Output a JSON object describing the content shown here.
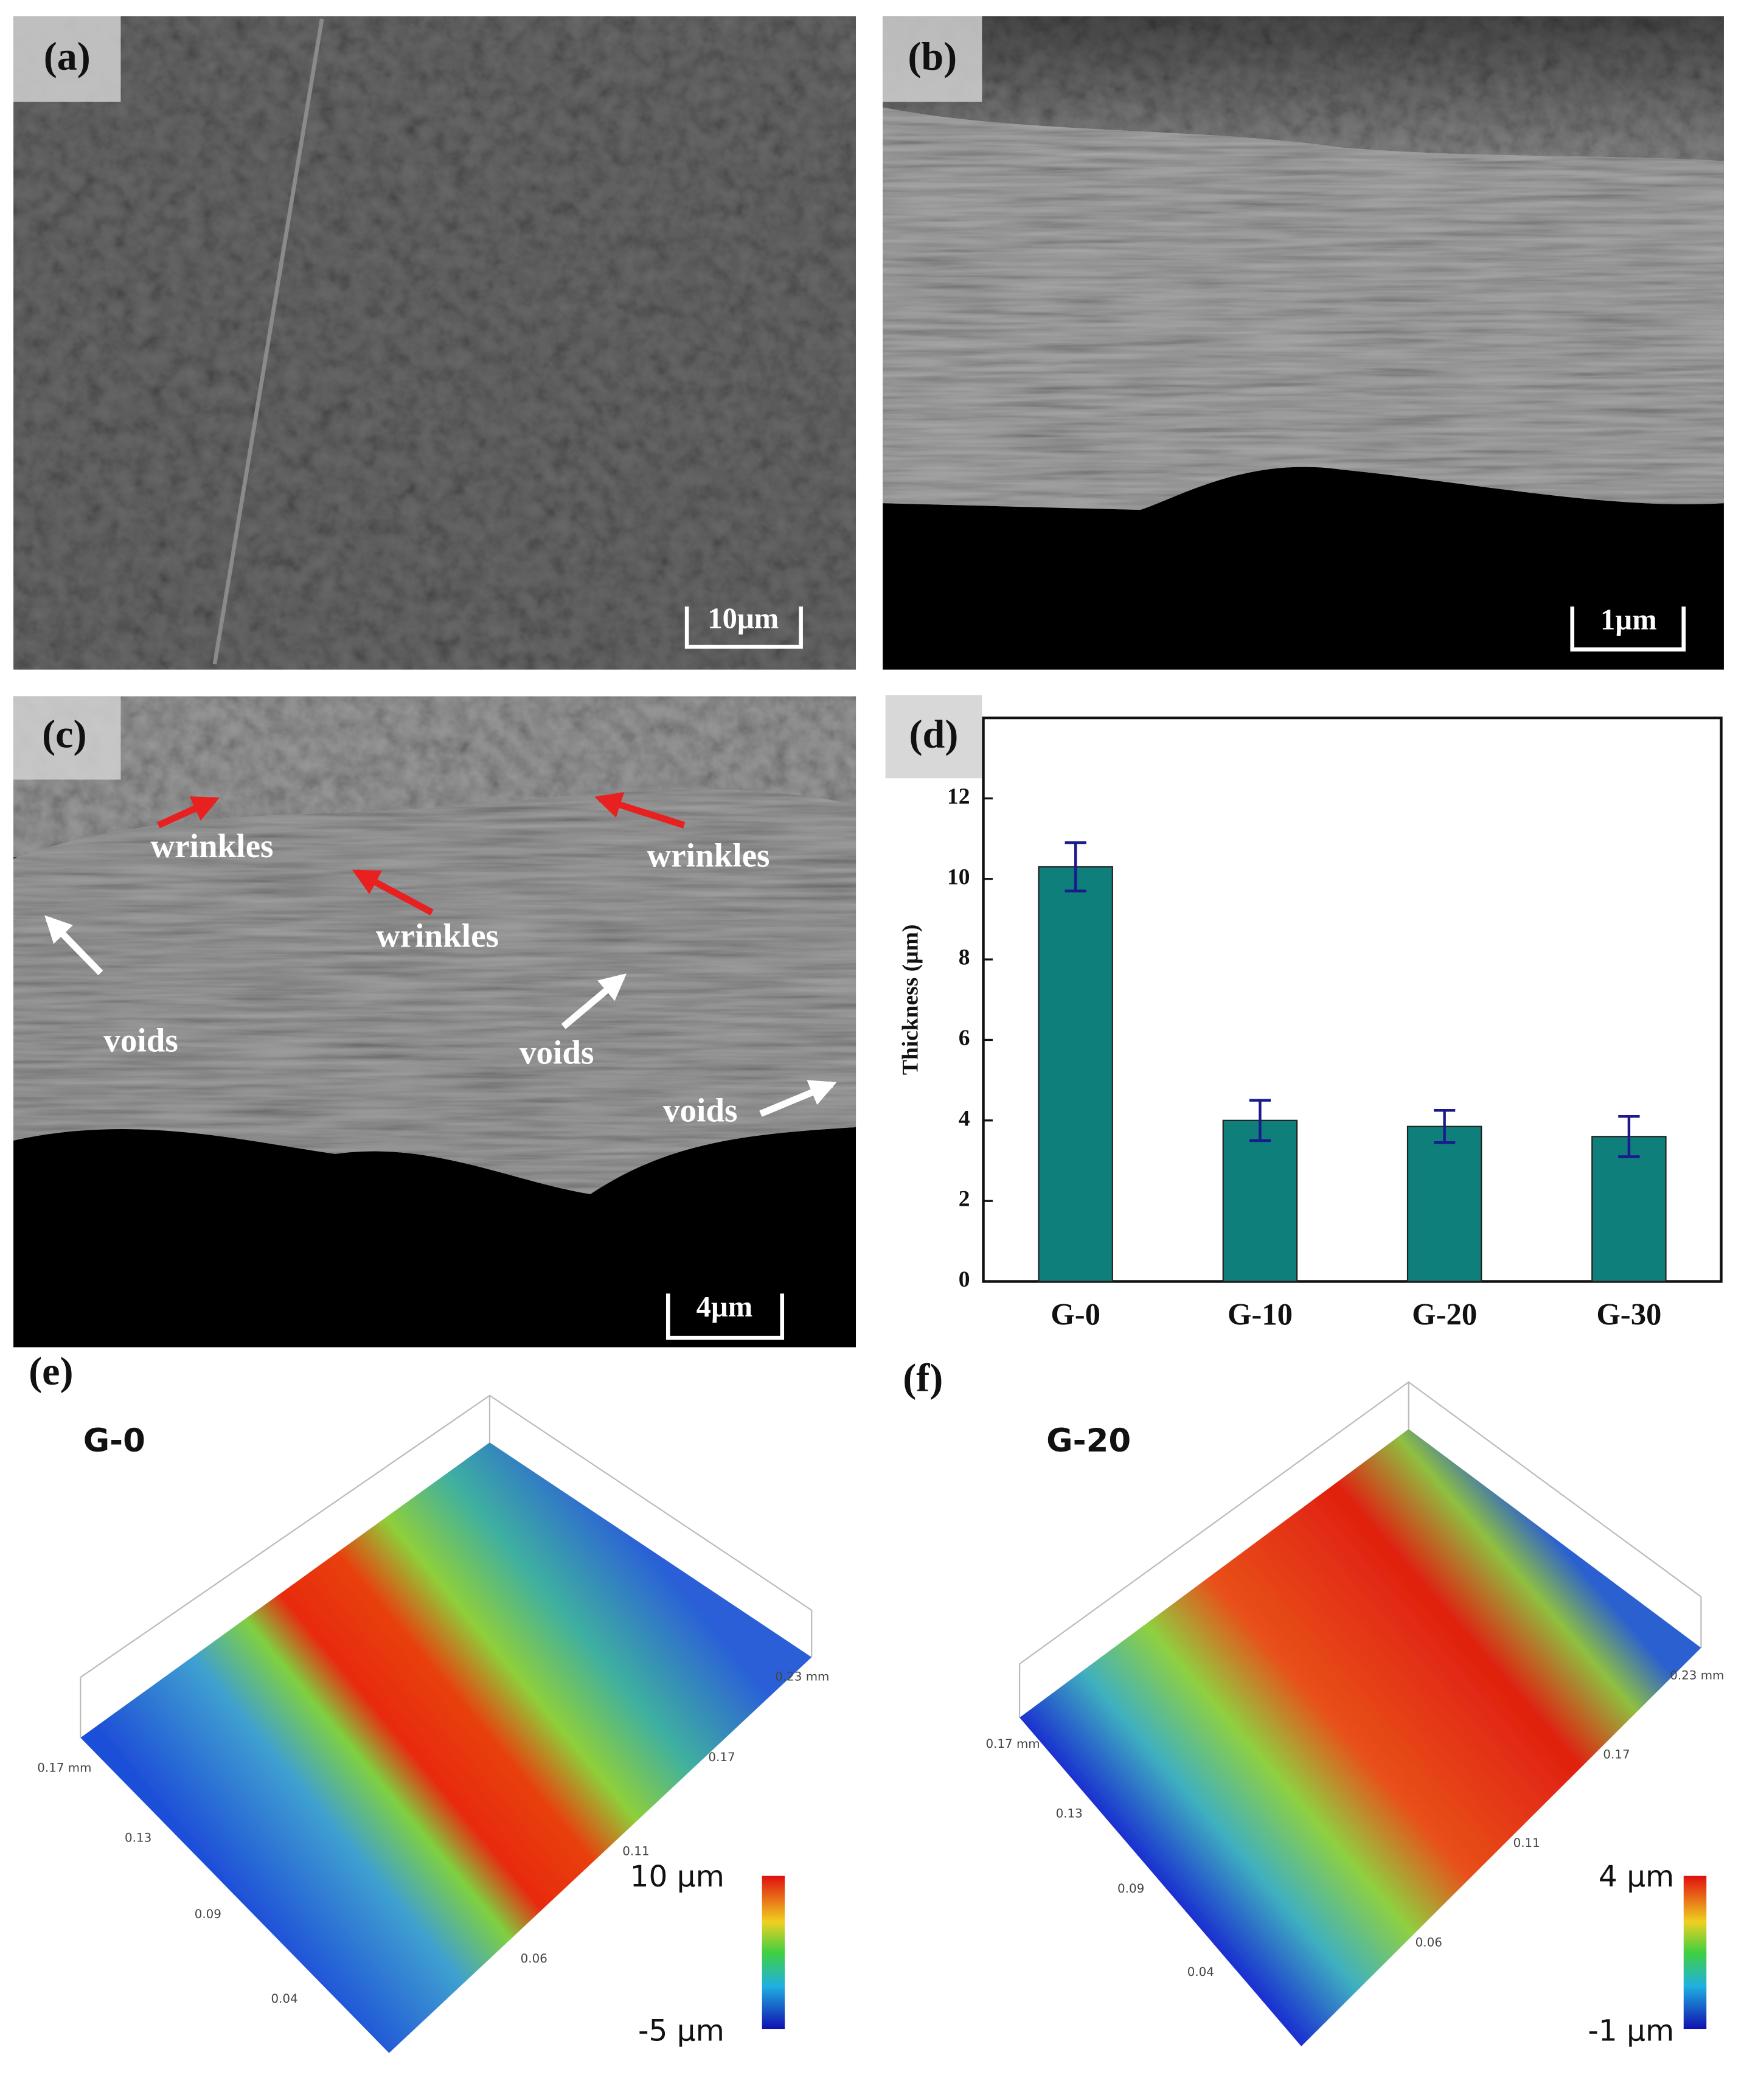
{
  "panels": {
    "a": {
      "label": "(a)",
      "scale_bar": "10µm"
    },
    "b": {
      "label": "(b)",
      "scale_bar": "1µm"
    },
    "c": {
      "label": "(c)",
      "scale_bar": "4µm",
      "annotations": [
        "wrinkles",
        "wrinkles",
        "wrinkles",
        "voids",
        "voids",
        "voids"
      ]
    },
    "d": {
      "label": "(d)"
    },
    "e": {
      "label": "(e)",
      "sample": "G-0",
      "axis_labels": [
        "0.17 mm",
        "0.13",
        "0.09",
        "0.04",
        "0.06",
        "0.11",
        "0.17",
        "0.23 mm"
      ],
      "colorbar_max": "10 µm",
      "colorbar_min": "-5 µm"
    },
    "f": {
      "label": "(f)",
      "sample": "G-20",
      "axis_labels": [
        "0.17 mm",
        "0.13",
        "0.09",
        "0.04",
        "0.06",
        "0.11",
        "0.17",
        "0.23 mm"
      ],
      "colorbar_max": "4 µm",
      "colorbar_min": "-1 µm"
    }
  },
  "chart_data": {
    "type": "bar",
    "categories": [
      "G-0",
      "G-10",
      "G-20",
      "G-30"
    ],
    "values": [
      10.3,
      4.0,
      3.85,
      3.6
    ],
    "errors": [
      0.6,
      0.5,
      0.4,
      0.5
    ],
    "color": "#0e7f7b",
    "error_color": "#1a1a8c",
    "ylabel": "Thickness (µm)",
    "ylim": [
      0,
      14
    ],
    "yticks": [
      0,
      2,
      4,
      6,
      8,
      10,
      12
    ]
  }
}
